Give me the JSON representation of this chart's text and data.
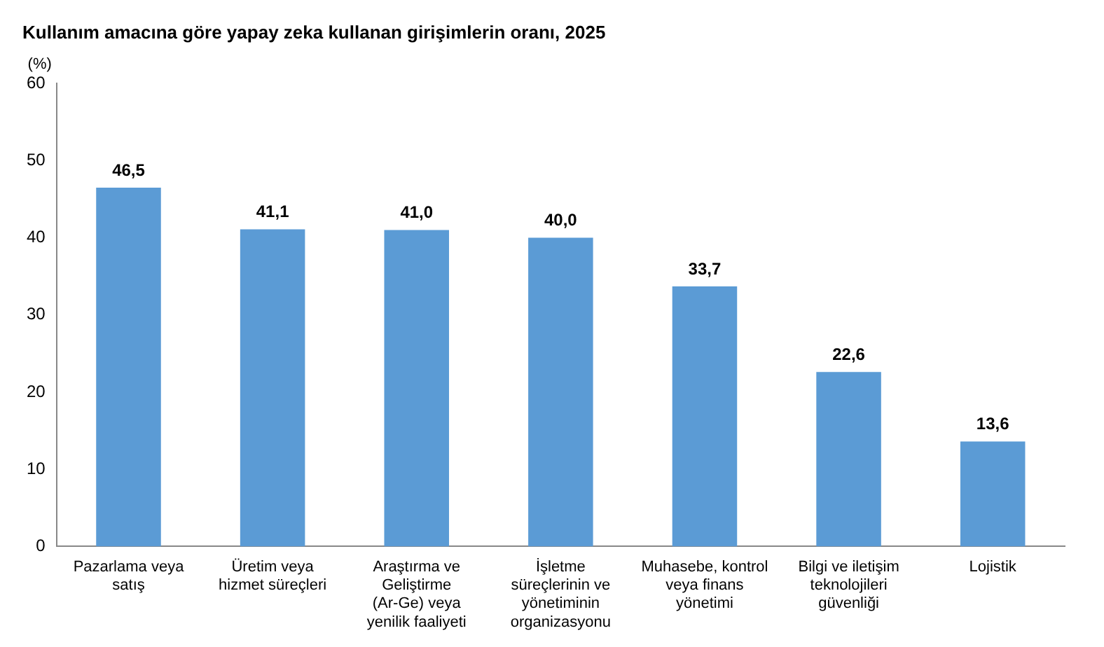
{
  "chart_data": {
    "type": "bar",
    "title": "Kullanım amacına göre yapay zeka kullanan girişimlerin oranı, 2025",
    "ylabel": "(%)",
    "categories": [
      "Pazarlama veya satış",
      "Üretim veya hizmet süreçleri",
      "Araştırma ve Geliştirme (Ar-Ge) veya yenilik faaliyeti",
      "İşletme süreçlerinin ve yönetiminin organizasyonu",
      "Muhasebe, kontrol veya finans yönetimi",
      "Bilgi ve iletişim teknolojileri güvenliği",
      "Lojistik"
    ],
    "values": [
      46.5,
      41.1,
      41.0,
      40.0,
      33.7,
      22.6,
      13.6
    ],
    "value_labels": [
      "46,5",
      "41,1",
      "41,0",
      "40,0",
      "33,7",
      "22,6",
      "13,6"
    ],
    "color": "#5b9bd5",
    "ylim": [
      0,
      60
    ],
    "yticks": [
      0,
      10,
      20,
      30,
      40,
      50,
      60
    ],
    "grid": false,
    "legend": false
  }
}
